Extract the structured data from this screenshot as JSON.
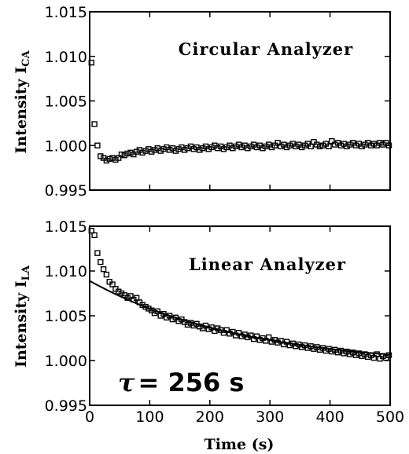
{
  "chart_data": [
    {
      "type": "scatter",
      "annotation": "Circular Analyzer",
      "ylabel": "Intensity I",
      "ylabel_sub": "CA",
      "xlim": [
        0,
        500
      ],
      "ylim": [
        0.995,
        1.015
      ],
      "yticks": [
        "1.015",
        "1.010",
        "1.005",
        "1.000",
        "0.995"
      ],
      "yticks_values": [
        1.015,
        1.01,
        1.005,
        1.0,
        0.995
      ],
      "marker": "open-square",
      "series": [
        {
          "x": [
            3,
            8,
            13,
            18,
            23,
            28,
            33,
            38,
            43,
            48,
            53,
            58,
            63,
            68,
            73,
            78,
            83,
            88,
            93,
            98,
            103,
            108,
            113,
            118,
            123,
            128,
            133,
            138,
            143,
            148,
            153,
            158,
            163,
            168,
            173,
            178,
            183,
            188,
            193,
            198,
            203,
            208,
            213,
            218,
            223,
            228,
            233,
            238,
            243,
            248,
            253,
            258,
            263,
            268,
            273,
            278,
            283,
            288,
            293,
            298,
            303,
            308,
            313,
            318,
            323,
            328,
            333,
            338,
            343,
            348,
            353,
            358,
            363,
            368,
            373,
            378,
            383,
            388,
            393,
            398,
            403,
            408,
            413,
            418,
            423,
            428,
            433,
            438,
            443,
            448,
            453,
            458,
            463,
            468,
            473,
            478,
            483,
            488,
            493,
            498
          ],
          "y": [
            1.0093,
            1.0024,
            1.0,
            0.9988,
            0.9986,
            0.9983,
            0.9985,
            0.9986,
            0.9984,
            0.9986,
            0.999,
            0.9989,
            0.9991,
            0.9992,
            0.999,
            0.9993,
            0.9995,
            0.9992,
            0.9994,
            0.9996,
            0.9993,
            0.9995,
            0.9997,
            0.9994,
            0.9996,
            0.9998,
            0.9995,
            0.9997,
            0.9994,
            0.9996,
            0.9998,
            0.9995,
            0.9997,
            0.9999,
            0.9996,
            0.9998,
            0.9995,
            0.9997,
            0.9999,
            0.9996,
            0.9998,
            1.0,
            0.9997,
            0.9999,
            0.9996,
            0.9998,
            1.0,
            0.9997,
            0.9999,
            1.0001,
            0.9998,
            1.0,
            0.9997,
            0.9999,
            1.0001,
            0.9998,
            1.0,
            0.9997,
            0.9999,
            1.0001,
            0.9998,
            1.0,
            1.0003,
            0.9999,
            1.0001,
            0.9998,
            1.0,
            1.0002,
            0.9999,
            1.0001,
            0.9998,
            1.0,
            1.0002,
            0.9999,
            1.0004,
            1.0001,
            0.9999,
            1.0,
            1.0002,
            0.9999,
            1.0005,
            1.0001,
            1.0003,
            1.0,
            1.0002,
            0.9999,
            1.0001,
            1.0003,
            1.0,
            1.0002,
            0.9999,
            1.0001,
            1.0003,
            1.0,
            1.0002,
            1.0,
            1.0003,
            1.0001,
            1.0003,
            1.0
          ]
        }
      ]
    },
    {
      "type": "scatter",
      "annotation": "Linear Analyzer",
      "ylabel": "Intensity I",
      "ylabel_sub": "LA",
      "xlabel": "Time (s)",
      "xlim": [
        0,
        500
      ],
      "ylim": [
        0.995,
        1.015
      ],
      "xticks": [
        "0",
        "100",
        "200",
        "300",
        "400",
        "500"
      ],
      "xticks_values": [
        0,
        100,
        200,
        300,
        400,
        500
      ],
      "yticks": [
        "1.015",
        "1.010",
        "1.005",
        "1.000",
        "0.995"
      ],
      "yticks_values": [
        1.015,
        1.01,
        1.005,
        1.0,
        0.995
      ],
      "marker": "open-square",
      "tau_symbol": "τ",
      "tau_text": "= 256 s",
      "fit": {
        "type": "exponential",
        "tau": 256,
        "offset": 0.9993,
        "amplitude": 0.0096
      },
      "series": [
        {
          "x": [
            3,
            8,
            13,
            18,
            23,
            28,
            33,
            38,
            43,
            48,
            53,
            58,
            63,
            68,
            73,
            78,
            83,
            88,
            93,
            98,
            103,
            108,
            113,
            118,
            123,
            128,
            133,
            138,
            143,
            148,
            153,
            158,
            163,
            168,
            173,
            178,
            183,
            188,
            193,
            198,
            203,
            208,
            213,
            218,
            223,
            228,
            233,
            238,
            243,
            248,
            253,
            258,
            263,
            268,
            273,
            278,
            283,
            288,
            293,
            298,
            303,
            308,
            313,
            318,
            323,
            328,
            333,
            338,
            343,
            348,
            353,
            358,
            363,
            368,
            373,
            378,
            383,
            388,
            393,
            398,
            403,
            408,
            413,
            418,
            423,
            428,
            433,
            438,
            443,
            448,
            453,
            458,
            463,
            468,
            473,
            478,
            483,
            488,
            493,
            498
          ],
          "y": [
            1.0145,
            1.014,
            1.012,
            1.011,
            1.0102,
            1.0096,
            1.0088,
            1.0085,
            1.008,
            1.0077,
            1.0075,
            1.0073,
            1.007,
            1.0072,
            1.0068,
            1.007,
            1.0065,
            1.0062,
            1.006,
            1.0058,
            1.0056,
            1.0053,
            1.0055,
            1.005,
            1.0052,
            1.0048,
            1.005,
            1.0046,
            1.0048,
            1.0044,
            1.0046,
            1.0043,
            1.004,
            1.0042,
            1.0039,
            1.0041,
            1.0038,
            1.0036,
            1.0039,
            1.0035,
            1.0037,
            1.0033,
            1.0036,
            1.0034,
            1.0031,
            1.0034,
            1.003,
            1.0032,
            1.0028,
            1.0031,
            1.0027,
            1.0029,
            1.0026,
            1.0028,
            1.0024,
            1.0027,
            1.0023,
            1.0025,
            1.0022,
            1.0026,
            1.0021,
            1.0023,
            1.002,
            1.0022,
            1.0018,
            1.0021,
            1.0017,
            1.0019,
            1.0016,
            1.0018,
            1.0015,
            1.0017,
            1.0014,
            1.0016,
            1.0013,
            1.0015,
            1.0012,
            1.0014,
            1.0011,
            1.0013,
            1.001,
            1.0012,
            1.0009,
            1.0011,
            1.0008,
            1.001,
            1.0007,
            1.0009,
            1.0006,
            1.0008,
            1.0005,
            1.0007,
            1.0004,
            1.0006,
            1.0003,
            1.0007,
            1.0002,
            1.0005,
            1.0003,
            1.0006
          ]
        }
      ]
    }
  ]
}
